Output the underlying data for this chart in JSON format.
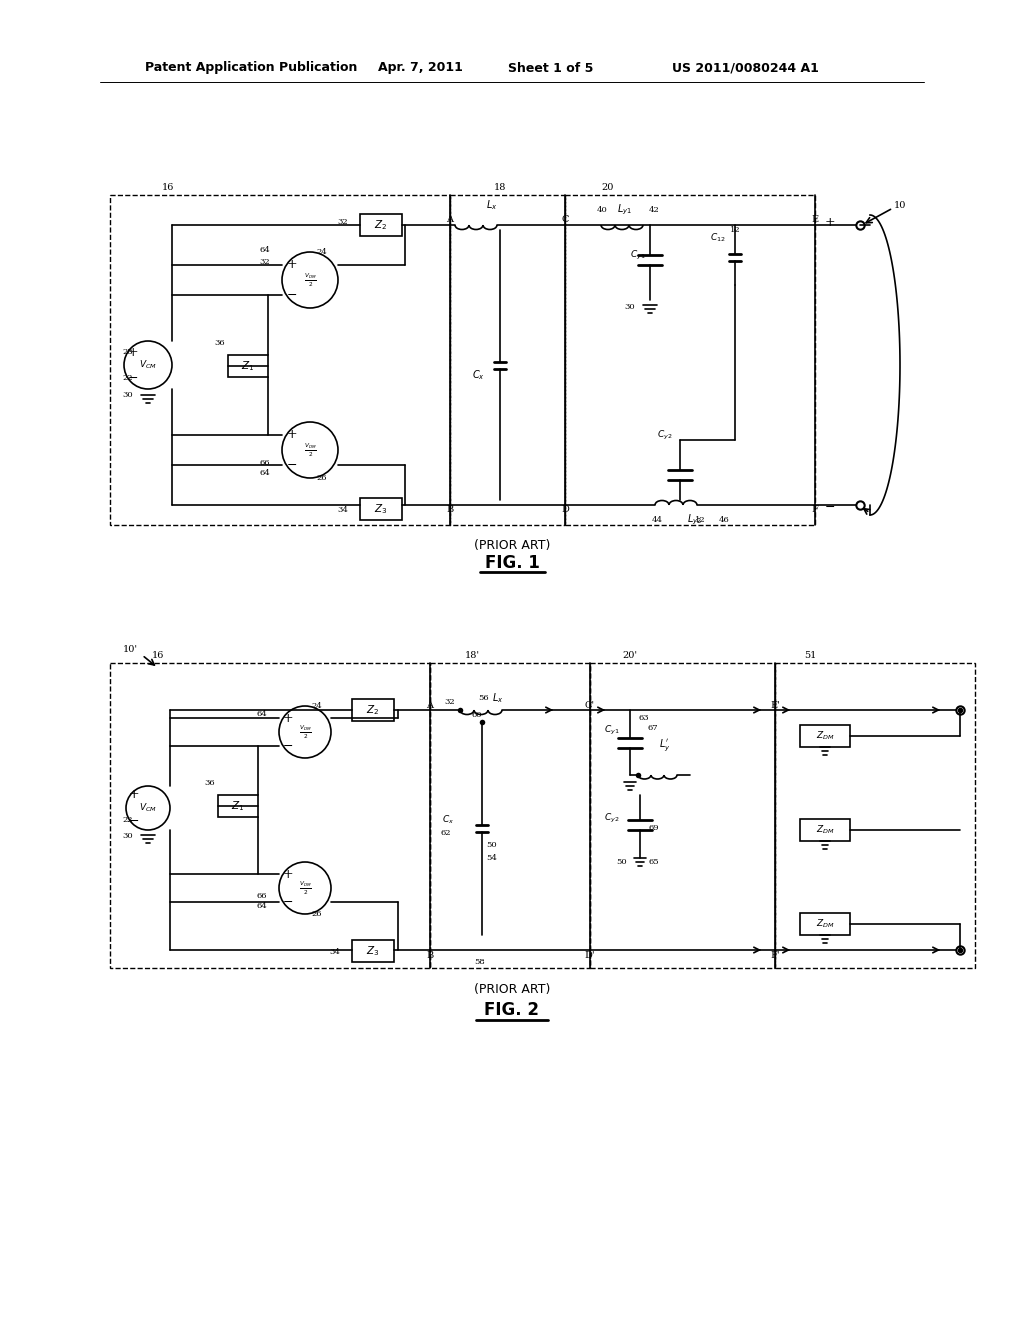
{
  "header_left": "Patent Application Publication",
  "header_mid1": "Apr. 7, 2011",
  "header_mid2": "Sheet 1 of 5",
  "header_right": "US 2011/0080244 A1",
  "prior_art": "(PRIOR ART)",
  "fig1": "FIG. 1",
  "fig2": "FIG. 2",
  "bg": "#ffffff",
  "lc": "#000000"
}
